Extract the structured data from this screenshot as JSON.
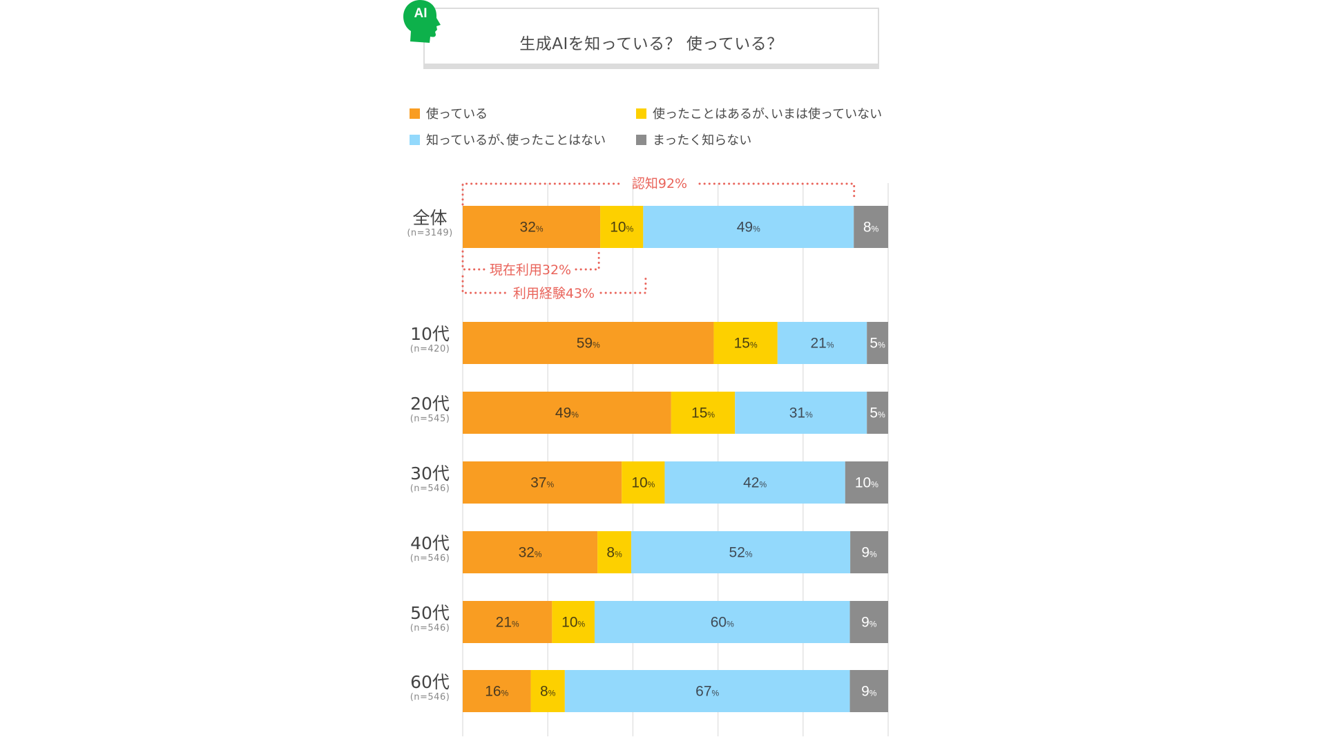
{
  "header": {
    "icon_label": "AI",
    "title": "生成AIを知っている？ 使っている？"
  },
  "colors": {
    "using": "#F99D22",
    "used_before": "#FDD000",
    "know_not_used": "#93D9FC",
    "dont_know": "#8C8C8C",
    "annotation": "#E9645B",
    "icon_green": "#0DB14B"
  },
  "chart_data": {
    "type": "bar",
    "orientation": "horizontal",
    "stacked": true,
    "title": "生成AIを知っている？ 使っている？",
    "xlim": [
      0,
      100
    ],
    "grid": true,
    "legend_position": "top",
    "categories": [
      {
        "label": "全体",
        "n": "(n=3149)"
      },
      {
        "label": "10代",
        "n": "(n=420)"
      },
      {
        "label": "20代",
        "n": "(n=545)"
      },
      {
        "label": "30代",
        "n": "(n=546)"
      },
      {
        "label": "40代",
        "n": "(n=546)"
      },
      {
        "label": "50代",
        "n": "(n=546)"
      },
      {
        "label": "60代",
        "n": "(n=546)"
      }
    ],
    "series": [
      {
        "name": "使っている",
        "color_key": "using",
        "values": [
          32,
          59,
          49,
          37,
          32,
          21,
          16
        ]
      },
      {
        "name": "使ったことはあるが､いまは使っていない",
        "color_key": "used_before",
        "values": [
          10,
          15,
          15,
          10,
          8,
          10,
          8
        ]
      },
      {
        "name": "知っているが､使ったことはない",
        "color_key": "know_not_used",
        "values": [
          49,
          21,
          31,
          42,
          52,
          60,
          67
        ]
      },
      {
        "name": "まったく知らない",
        "color_key": "dont_know",
        "values": [
          8,
          5,
          5,
          10,
          9,
          9,
          9
        ]
      }
    ],
    "value_suffix": "%",
    "annotations": [
      {
        "text": "認知92%",
        "from": 0,
        "to": 92,
        "category": "全体",
        "position": "above"
      },
      {
        "text": "現在利用32%",
        "from": 0,
        "to": 32,
        "category": "全体",
        "position": "below"
      },
      {
        "text": "利用経験43%",
        "from": 0,
        "to": 43,
        "category": "全体",
        "position": "below"
      }
    ]
  },
  "legend": [
    {
      "label": "使っている",
      "color_key": "using"
    },
    {
      "label": "使ったことはあるが､いまは使っていない",
      "color_key": "used_before"
    },
    {
      "label": "知っているが､使ったことはない",
      "color_key": "know_not_used"
    },
    {
      "label": "まったく知らない",
      "color_key": "dont_know"
    }
  ]
}
